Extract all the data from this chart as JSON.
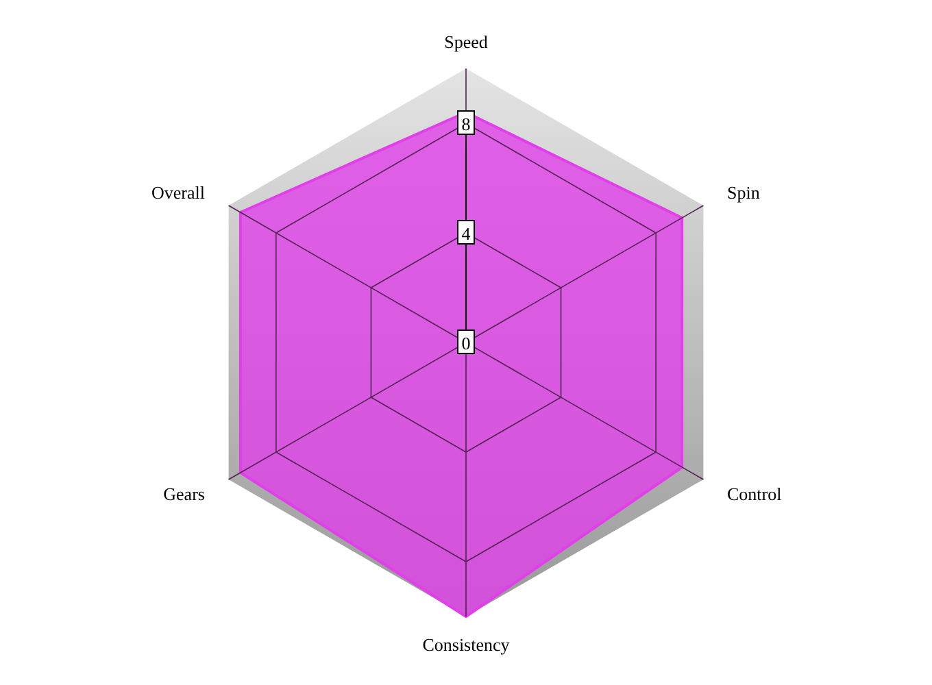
{
  "chart_data": {
    "type": "radar",
    "categories": [
      "Speed",
      "Spin",
      "Control",
      "Consistency",
      "Gears",
      "Overall"
    ],
    "series": [
      {
        "color": "#e040e8",
        "values": [
          8.4,
          9.1,
          9.1,
          10,
          9.5,
          9.5
        ]
      }
    ],
    "ylim": [
      0,
      10
    ],
    "yticks": [
      0,
      4,
      8
    ],
    "grid": true
  }
}
